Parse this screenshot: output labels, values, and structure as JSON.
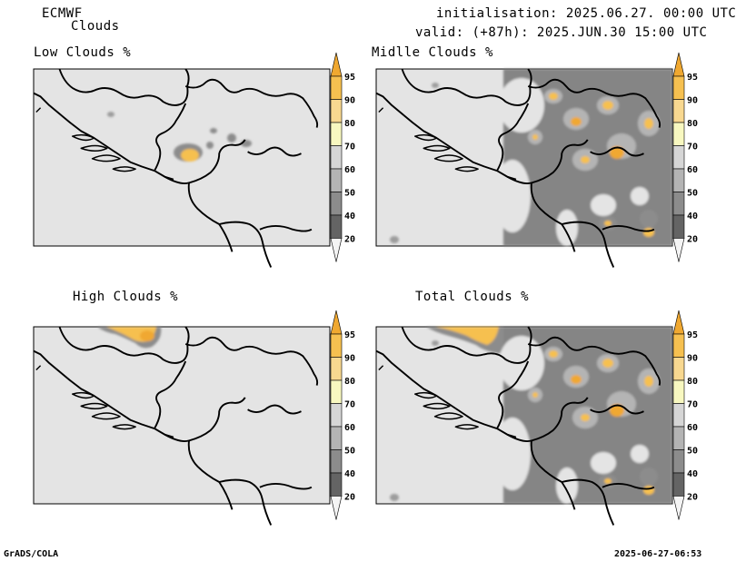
{
  "header": {
    "model": "ECMWF",
    "product": "Clouds",
    "init_line": "initialisation: 2025.06.27. 00:00 UTC",
    "valid_line": "valid: (+87h): 2025.JUN.30 15:00 UTC"
  },
  "panels": {
    "low": {
      "title": "Low Clouds %"
    },
    "mid": {
      "title": "Midlle Clouds %"
    },
    "high": {
      "title": "High Clouds %"
    },
    "total": {
      "title": "Total Clouds %"
    }
  },
  "colorbar": {
    "ticks": [
      "95",
      "90",
      "80",
      "70",
      "60",
      "50",
      "40",
      "20"
    ],
    "colors": [
      "#f0a830",
      "#f6c050",
      "#f8d890",
      "#f8f8c0",
      "#d6d6d6",
      "#b4b4b4",
      "#8c8c8c",
      "#646464",
      "#f4f4f4"
    ]
  },
  "footer": {
    "left": "GrADS/COLA",
    "right": "2025-06-27-06:53"
  }
}
